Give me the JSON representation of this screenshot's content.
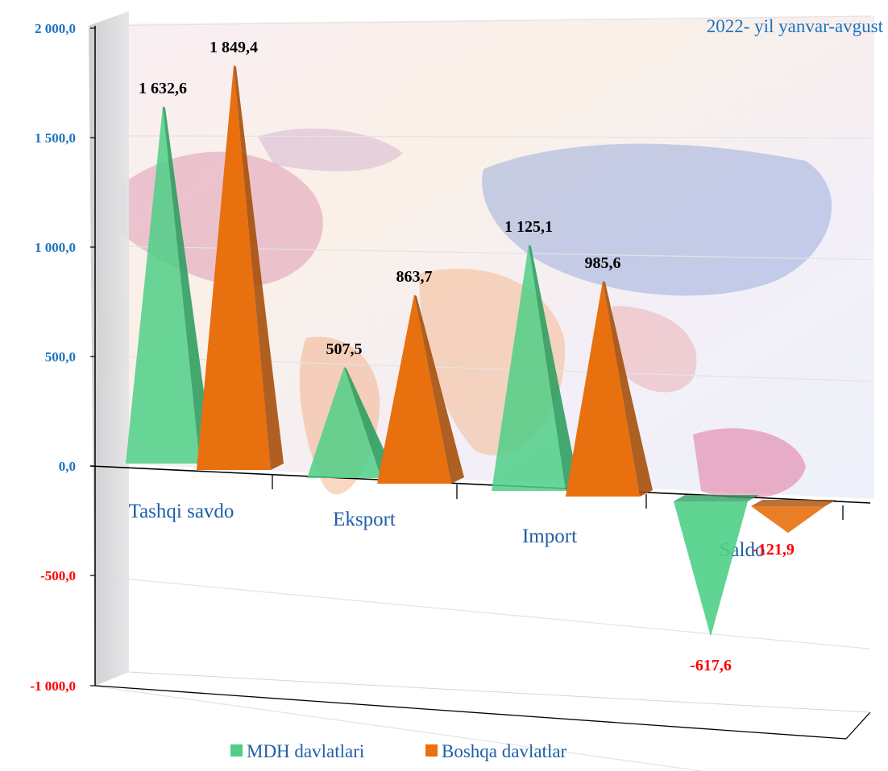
{
  "chart_data": {
    "type": "bar",
    "subtitle": "2022- yil yanvar-avgust",
    "categories": [
      "Tashqi savdo",
      "Eksport",
      "Import",
      "Saldo"
    ],
    "series": [
      {
        "name": "MDH davlatlari",
        "values": [
          1632.6,
          507.5,
          1125.1,
          -617.6
        ],
        "labels": [
          "1 632,6",
          "507,5",
          "1 125,1",
          "-617,6"
        ]
      },
      {
        "name": "Boshqa davlatlar",
        "values": [
          1849.4,
          863.7,
          985.6,
          -121.9
        ],
        "labels": [
          "1 849,4",
          "863,7",
          "985,6",
          "-121,9"
        ]
      }
    ],
    "ylim": [
      -1000,
      2000
    ],
    "yticks": [
      -1000,
      -500,
      0,
      500,
      1000,
      1500,
      2000
    ],
    "ytick_labels": [
      "-1 000,0",
      "-500,0",
      "0,0",
      "500,0",
      "1 000,0",
      "1 500,0",
      "2 000,0"
    ],
    "grid": true,
    "legend_position": "bottom",
    "bar_shape": "pyramid",
    "colors": {
      "series": [
        "#4fcf86",
        "#e8700f"
      ],
      "series_shade": [
        "#2f9e60",
        "#a64f0a"
      ],
      "positive_label": "#000000",
      "negative_label": "#ff0000",
      "axis_positive_tick": "#1e73be",
      "axis_negative_tick": "#ff0000",
      "category_label": "#1e5fa8",
      "subtitle": "#1e73be"
    }
  }
}
